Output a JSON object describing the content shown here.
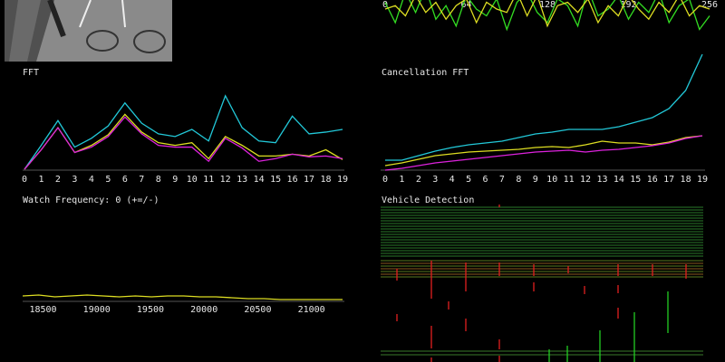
{
  "waveform": {
    "type": "line",
    "xlim": [
      0,
      256
    ],
    "ylim": [
      -40,
      40
    ],
    "xticks": [
      0,
      64,
      128,
      192,
      256
    ],
    "x": [
      0,
      8,
      16,
      24,
      32,
      40,
      48,
      56,
      64,
      72,
      80,
      88,
      96,
      104,
      112,
      120,
      128,
      136,
      144,
      152,
      160,
      168,
      176,
      184,
      192,
      200,
      208,
      216,
      224,
      232,
      240,
      248,
      256
    ],
    "series": [
      {
        "color": "#33dd22",
        "values": [
          10,
          -20,
          25,
          -5,
          30,
          -15,
          5,
          -25,
          20,
          0,
          -10,
          15,
          -30,
          10,
          25,
          -5,
          -20,
          15,
          5,
          -25,
          30,
          -10,
          0,
          20,
          -15,
          10,
          -5,
          25,
          -20,
          5,
          15,
          -30,
          -10
        ]
      },
      {
        "color": "#dddd22",
        "values": [
          0,
          5,
          -10,
          20,
          -5,
          10,
          -15,
          5,
          15,
          -20,
          10,
          0,
          -5,
          25,
          -10,
          20,
          -25,
          5,
          10,
          -5,
          15,
          -20,
          5,
          -10,
          20,
          0,
          -15,
          10,
          -5,
          20,
          -10,
          5,
          0
        ]
      }
    ]
  },
  "fft": {
    "type": "line",
    "title": "FFT",
    "ylim": [
      0,
      90
    ],
    "categories": [
      "0",
      "1",
      "2",
      "3",
      "4",
      "5",
      "6",
      "7",
      "8",
      "9",
      "10",
      "11",
      "12",
      "13",
      "14",
      "15",
      "16",
      "17",
      "18",
      "19"
    ],
    "series": [
      {
        "color": "#22c8d8",
        "values": [
          1,
          28,
          56,
          26,
          36,
          50,
          76,
          53,
          41,
          38,
          46,
          33,
          84,
          48,
          33,
          31,
          61,
          41,
          43,
          46
        ]
      },
      {
        "color": "#dddd22",
        "values": [
          1,
          23,
          48,
          20,
          28,
          40,
          63,
          43,
          31,
          28,
          31,
          13,
          38,
          28,
          16,
          16,
          18,
          16,
          23,
          12
        ]
      },
      {
        "color": "#dd22dd",
        "values": [
          1,
          23,
          48,
          20,
          26,
          38,
          60,
          41,
          28,
          26,
          26,
          10,
          36,
          25,
          10,
          13,
          18,
          15,
          16,
          13
        ]
      }
    ]
  },
  "cancellation_fft": {
    "type": "line",
    "title": "Cancellation FFT",
    "ylim": [
      0,
      130
    ],
    "categories": [
      "0",
      "1",
      "2",
      "3",
      "4",
      "5",
      "6",
      "7",
      "8",
      "9",
      "10",
      "11",
      "12",
      "13",
      "14",
      "15",
      "16",
      "17",
      "18",
      "19"
    ],
    "series": [
      {
        "color": "#22c8d8",
        "values": [
          11,
          11,
          16,
          21,
          25,
          28,
          30,
          32,
          36,
          40,
          42,
          45,
          45,
          45,
          48,
          53,
          58,
          68,
          88,
          128
        ]
      },
      {
        "color": "#dddd22",
        "values": [
          5,
          8,
          12,
          16,
          18,
          20,
          21,
          22,
          23,
          25,
          26,
          25,
          28,
          32,
          30,
          30,
          28,
          31,
          36,
          38
        ]
      },
      {
        "color": "#dd22dd",
        "values": [
          0,
          2,
          5,
          8,
          10,
          12,
          14,
          16,
          18,
          20,
          21,
          22,
          20,
          22,
          23,
          25,
          27,
          30,
          35,
          38
        ]
      }
    ]
  },
  "watch": {
    "type": "line",
    "title": "Watch Frequency: 0 (+=/-)",
    "xlim": [
      18310,
      21290
    ],
    "ylim": [
      0,
      100
    ],
    "xticks": [
      18500,
      19000,
      19500,
      20000,
      20500,
      21000
    ],
    "x": [
      18310,
      18460,
      18610,
      18760,
      18910,
      19060,
      19210,
      19360,
      19510,
      19660,
      19810,
      19960,
      20110,
      20260,
      20410,
      20560,
      20710,
      20860,
      21010,
      21160,
      21290
    ],
    "series": [
      {
        "color": "#dddd22",
        "values": [
          6,
          7,
          5,
          6,
          7,
          6,
          5,
          6,
          5,
          6,
          6,
          5,
          5,
          4,
          3,
          3,
          2,
          2,
          2,
          2,
          2
        ]
      }
    ]
  },
  "vehicle_detection": {
    "title": "Vehicle Detection"
  }
}
